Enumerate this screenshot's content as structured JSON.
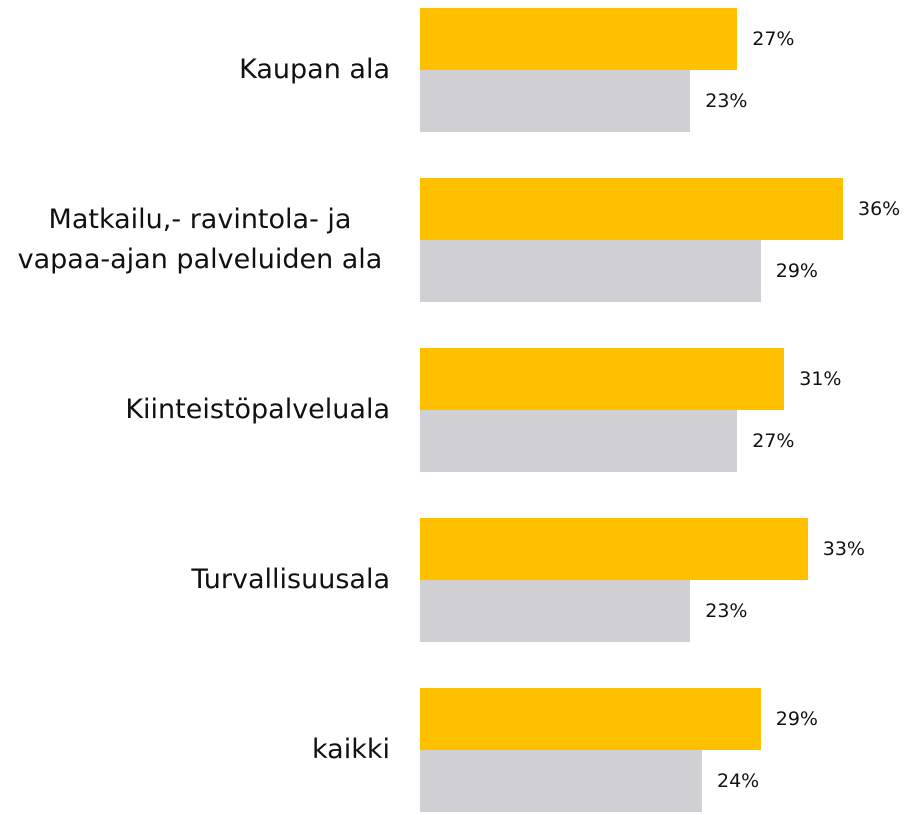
{
  "chart_data": {
    "type": "bar",
    "orientation": "horizontal",
    "categories": [
      "Kaupan ala",
      "Matkailu,- ravintola- ja vapaa-ajan palveluiden ala",
      "Kiinteistöpalveluala",
      "Turvallisuusala",
      "kaikki"
    ],
    "series": [
      {
        "color": "#ffc000",
        "values": [
          27,
          36,
          31,
          33,
          29
        ],
        "value_labels": [
          "27%",
          "36%",
          "31%",
          "33%",
          "29%"
        ]
      },
      {
        "color": "#d0d0d4",
        "values": [
          23,
          29,
          27,
          23,
          24
        ],
        "value_labels": [
          "23%",
          "29%",
          "27%",
          "23%",
          "24%"
        ]
      }
    ]
  }
}
